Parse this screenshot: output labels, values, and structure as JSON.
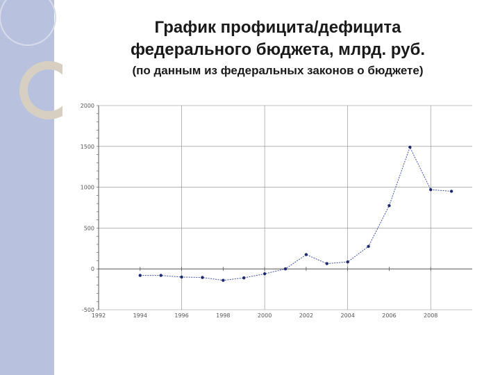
{
  "slide": {
    "title_line1": "График профицита/дефицита",
    "title_line2": "федерального бюджета, млрд. руб.",
    "subtitle": "(по данным из федеральных законов о бюджете)"
  },
  "colors": {
    "sidebar": "#b8c2de",
    "line": "#3d4fa0",
    "marker": "#1f2a6e",
    "grid": "#888888"
  },
  "chart_data": {
    "type": "line",
    "title": "График профицита/дефицита федерального бюджета, млрд. руб.",
    "subtitle": "(по данным из федеральных законов о бюджете)",
    "xlabel": "",
    "ylabel": "",
    "xlim": [
      1992,
      2010
    ],
    "ylim": [
      -500,
      2000
    ],
    "x_ticks": [
      1992,
      1994,
      1996,
      1998,
      2000,
      2002,
      2004,
      2006,
      2008
    ],
    "x_tick_labels": [
      "1992",
      "1994",
      "1996",
      "1998",
      "2000",
      "2002",
      "2004",
      "2006",
      "2008"
    ],
    "y_ticks": [
      -500,
      0,
      500,
      1000,
      1500,
      2000
    ],
    "y_tick_labels": [
      "-500",
      "0",
      "500",
      "1000",
      "1500",
      "2000"
    ],
    "grid": true,
    "legend": "none",
    "series": [
      {
        "x": [
          1994,
          1995,
          1996,
          1997,
          1998,
          1999,
          2000,
          2001,
          2002,
          2003,
          2004,
          2005,
          2006,
          2007,
          2008,
          2009
        ],
        "y": [
          -80,
          -80,
          -100,
          -105,
          -140,
          -110,
          -60,
          0,
          175,
          65,
          85,
          275,
          775,
          1490,
          970,
          950
        ]
      }
    ]
  }
}
